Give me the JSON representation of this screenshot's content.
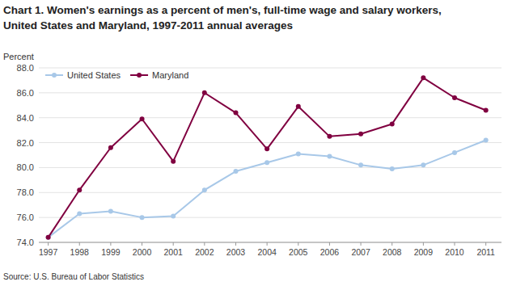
{
  "chart_data": {
    "type": "line",
    "title": "Chart 1. Women's earnings as a percent of men's, full-time wage and salary workers,",
    "subtitle": "United States and Maryland, 1997-2011 annual averages",
    "ylabel": "Percent",
    "source": "Source:  U.S. Bureau of Labor Statistics",
    "x": [
      1997,
      1998,
      1999,
      2000,
      2001,
      2002,
      2003,
      2004,
      2005,
      2006,
      2007,
      2008,
      2009,
      2010,
      2011
    ],
    "series": [
      {
        "name": "United States",
        "color": "#a8c8e8",
        "marker": "circle",
        "values": [
          74.4,
          76.3,
          76.5,
          76.0,
          76.1,
          78.2,
          79.7,
          80.4,
          81.1,
          80.9,
          80.2,
          79.9,
          80.2,
          81.2,
          82.2
        ]
      },
      {
        "name": "Maryland",
        "color": "#800040",
        "marker": "circle",
        "values": [
          74.4,
          78.2,
          81.6,
          83.9,
          80.5,
          86.0,
          84.4,
          81.5,
          84.9,
          82.5,
          82.7,
          83.5,
          87.2,
          85.6,
          84.6
        ]
      }
    ],
    "xlim": [
      1996.7,
      2011.5
    ],
    "xticks": [
      1997,
      1998,
      1999,
      2000,
      2001,
      2002,
      2003,
      2004,
      2005,
      2006,
      2007,
      2008,
      2009,
      2010,
      2011
    ],
    "ylim": [
      74.0,
      88.0
    ],
    "yticks": [
      {
        "value": 74.0,
        "label": "74.0"
      },
      {
        "value": 76.0,
        "label": "76.0"
      },
      {
        "value": 78.0,
        "label": "78.0"
      },
      {
        "value": 80.0,
        "label": "80.0"
      },
      {
        "value": 82.0,
        "label": "82.0"
      },
      {
        "value": 84.0,
        "label": "84.0"
      },
      {
        "value": 86.0,
        "label": "86.0"
      },
      {
        "value": 88.0,
        "label": "88.0"
      }
    ],
    "grid": true,
    "legend": "upper left"
  }
}
